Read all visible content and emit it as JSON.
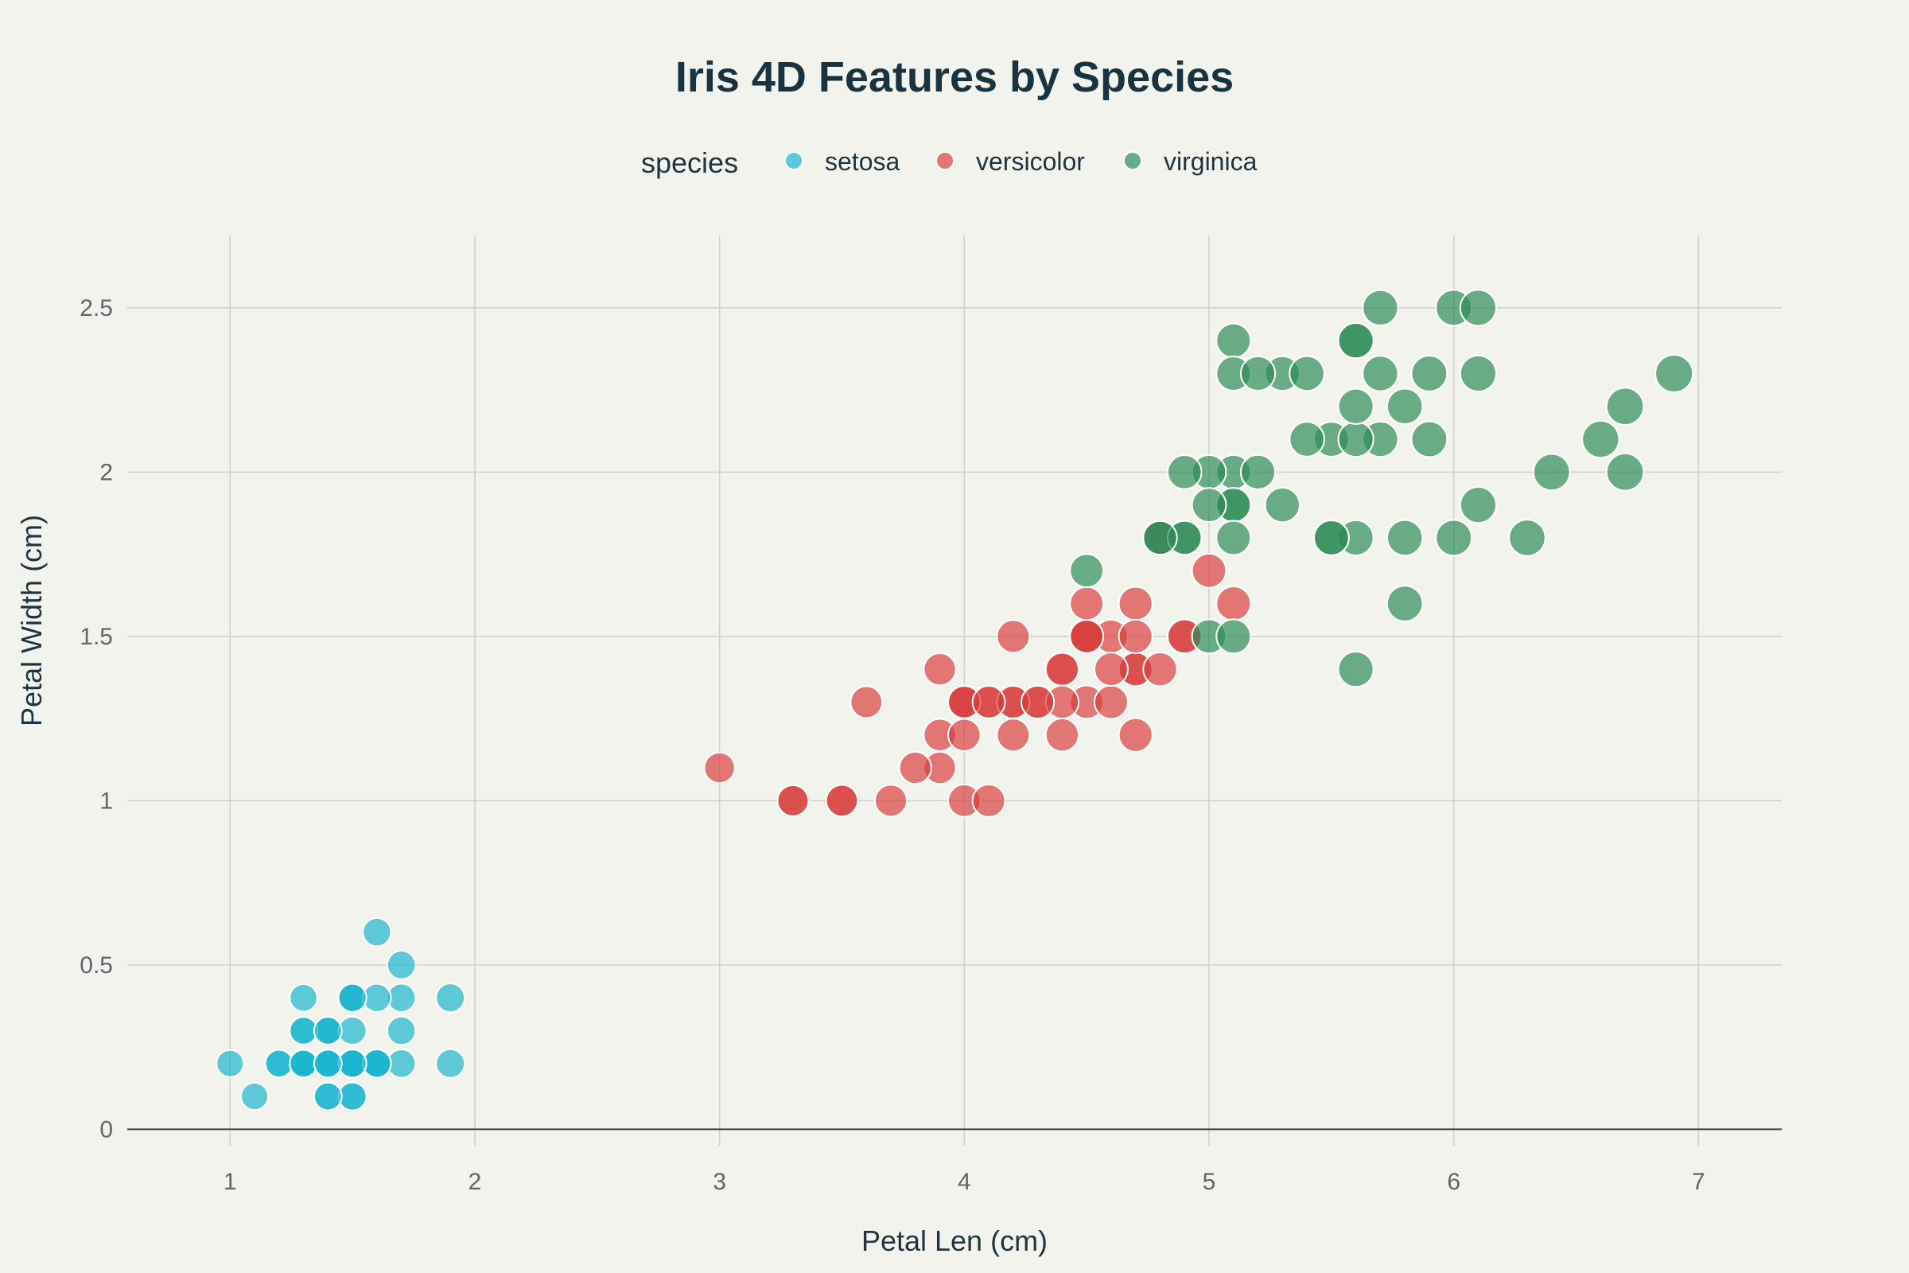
{
  "chart_data": {
    "type": "scatter",
    "title": "Iris 4D Features by Species",
    "xlabel": "Petal Len (cm)",
    "ylabel": "Petal Width (cm)",
    "xlim": [
      0.58,
      7.34
    ],
    "ylim": [
      -0.05,
      2.72
    ],
    "xticks": [
      1,
      2,
      3,
      4,
      5,
      6,
      7
    ],
    "yticks": [
      0,
      0.5,
      1,
      1.5,
      2,
      2.5
    ],
    "ytick_labels": [
      "0",
      "0.5",
      "1",
      "1.5",
      "2",
      "2.5"
    ],
    "grid": true,
    "legend": {
      "title": "species",
      "position": "top-center"
    },
    "marker_opacity": 0.7,
    "series": [
      {
        "name": "setosa",
        "color": "#1cb5cf",
        "points": [
          [
            1.4,
            0.2
          ],
          [
            1.4,
            0.2
          ],
          [
            1.3,
            0.2
          ],
          [
            1.5,
            0.2
          ],
          [
            1.4,
            0.2
          ],
          [
            1.7,
            0.4
          ],
          [
            1.4,
            0.3
          ],
          [
            1.5,
            0.2
          ],
          [
            1.4,
            0.2
          ],
          [
            1.5,
            0.1
          ],
          [
            1.5,
            0.2
          ],
          [
            1.6,
            0.2
          ],
          [
            1.4,
            0.1
          ],
          [
            1.1,
            0.1
          ],
          [
            1.2,
            0.2
          ],
          [
            1.5,
            0.4
          ],
          [
            1.3,
            0.4
          ],
          [
            1.4,
            0.3
          ],
          [
            1.7,
            0.3
          ],
          [
            1.5,
            0.3
          ],
          [
            1.7,
            0.2
          ],
          [
            1.5,
            0.4
          ],
          [
            1.0,
            0.2
          ],
          [
            1.7,
            0.5
          ],
          [
            1.9,
            0.2
          ],
          [
            1.6,
            0.2
          ],
          [
            1.6,
            0.4
          ],
          [
            1.5,
            0.2
          ],
          [
            1.4,
            0.2
          ],
          [
            1.6,
            0.2
          ],
          [
            1.6,
            0.2
          ],
          [
            1.5,
            0.4
          ],
          [
            1.5,
            0.1
          ],
          [
            1.4,
            0.2
          ],
          [
            1.5,
            0.2
          ],
          [
            1.2,
            0.2
          ],
          [
            1.3,
            0.2
          ],
          [
            1.4,
            0.1
          ],
          [
            1.3,
            0.2
          ],
          [
            1.5,
            0.2
          ],
          [
            1.3,
            0.3
          ],
          [
            1.3,
            0.3
          ],
          [
            1.3,
            0.2
          ],
          [
            1.6,
            0.6
          ],
          [
            1.9,
            0.4
          ],
          [
            1.4,
            0.3
          ],
          [
            1.6,
            0.2
          ],
          [
            1.4,
            0.2
          ],
          [
            1.5,
            0.2
          ],
          [
            1.4,
            0.2
          ]
        ]
      },
      {
        "name": "versicolor",
        "color": "#d94040",
        "points": [
          [
            4.7,
            1.4
          ],
          [
            4.5,
            1.5
          ],
          [
            4.9,
            1.5
          ],
          [
            4.0,
            1.3
          ],
          [
            4.6,
            1.5
          ],
          [
            4.5,
            1.3
          ],
          [
            4.7,
            1.6
          ],
          [
            3.3,
            1.0
          ],
          [
            4.6,
            1.3
          ],
          [
            3.9,
            1.4
          ],
          [
            3.5,
            1.0
          ],
          [
            4.2,
            1.5
          ],
          [
            4.0,
            1.0
          ],
          [
            4.7,
            1.4
          ],
          [
            3.6,
            1.3
          ],
          [
            4.4,
            1.4
          ],
          [
            4.5,
            1.5
          ],
          [
            4.1,
            1.0
          ],
          [
            4.5,
            1.5
          ],
          [
            3.9,
            1.1
          ],
          [
            4.8,
            1.8
          ],
          [
            4.0,
            1.3
          ],
          [
            4.9,
            1.5
          ],
          [
            4.7,
            1.2
          ],
          [
            4.3,
            1.3
          ],
          [
            4.4,
            1.4
          ],
          [
            4.8,
            1.4
          ],
          [
            5.0,
            1.7
          ],
          [
            4.5,
            1.5
          ],
          [
            3.5,
            1.0
          ],
          [
            3.8,
            1.1
          ],
          [
            3.7,
            1.0
          ],
          [
            3.9,
            1.2
          ],
          [
            5.1,
            1.6
          ],
          [
            4.5,
            1.5
          ],
          [
            4.5,
            1.6
          ],
          [
            4.7,
            1.5
          ],
          [
            4.4,
            1.3
          ],
          [
            4.1,
            1.3
          ],
          [
            4.0,
            1.3
          ],
          [
            4.4,
            1.2
          ],
          [
            4.6,
            1.4
          ],
          [
            4.0,
            1.2
          ],
          [
            3.3,
            1.0
          ],
          [
            4.2,
            1.3
          ],
          [
            4.2,
            1.2
          ],
          [
            4.2,
            1.3
          ],
          [
            4.3,
            1.3
          ],
          [
            3.0,
            1.1
          ],
          [
            4.1,
            1.3
          ]
        ]
      },
      {
        "name": "virginica",
        "color": "#2e8b57",
        "points": [
          [
            6.0,
            2.5
          ],
          [
            5.1,
            1.9
          ],
          [
            5.9,
            2.1
          ],
          [
            5.6,
            1.8
          ],
          [
            5.8,
            2.2
          ],
          [
            6.6,
            2.1
          ],
          [
            4.5,
            1.7
          ],
          [
            6.3,
            1.8
          ],
          [
            5.8,
            1.8
          ],
          [
            6.1,
            2.5
          ],
          [
            5.1,
            2.0
          ],
          [
            5.3,
            1.9
          ],
          [
            5.5,
            2.1
          ],
          [
            5.0,
            2.0
          ],
          [
            5.1,
            2.4
          ],
          [
            5.3,
            2.3
          ],
          [
            5.5,
            1.8
          ],
          [
            6.7,
            2.2
          ],
          [
            6.9,
            2.3
          ],
          [
            5.0,
            1.5
          ],
          [
            5.7,
            2.3
          ],
          [
            4.9,
            2.0
          ],
          [
            6.7,
            2.0
          ],
          [
            4.9,
            1.8
          ],
          [
            5.7,
            2.1
          ],
          [
            6.0,
            1.8
          ],
          [
            4.8,
            1.8
          ],
          [
            4.9,
            1.8
          ],
          [
            5.6,
            2.1
          ],
          [
            5.8,
            1.6
          ],
          [
            6.1,
            1.9
          ],
          [
            6.4,
            2.0
          ],
          [
            5.6,
            2.2
          ],
          [
            5.1,
            1.5
          ],
          [
            5.6,
            1.4
          ],
          [
            6.1,
            2.3
          ],
          [
            5.6,
            2.4
          ],
          [
            5.5,
            1.8
          ],
          [
            4.8,
            1.8
          ],
          [
            5.4,
            2.1
          ],
          [
            5.6,
            2.4
          ],
          [
            5.1,
            2.3
          ],
          [
            5.1,
            1.9
          ],
          [
            5.9,
            2.3
          ],
          [
            5.7,
            2.5
          ],
          [
            5.2,
            2.3
          ],
          [
            5.0,
            1.9
          ],
          [
            5.2,
            2.0
          ],
          [
            5.4,
            2.3
          ],
          [
            5.1,
            1.8
          ]
        ]
      }
    ]
  }
}
